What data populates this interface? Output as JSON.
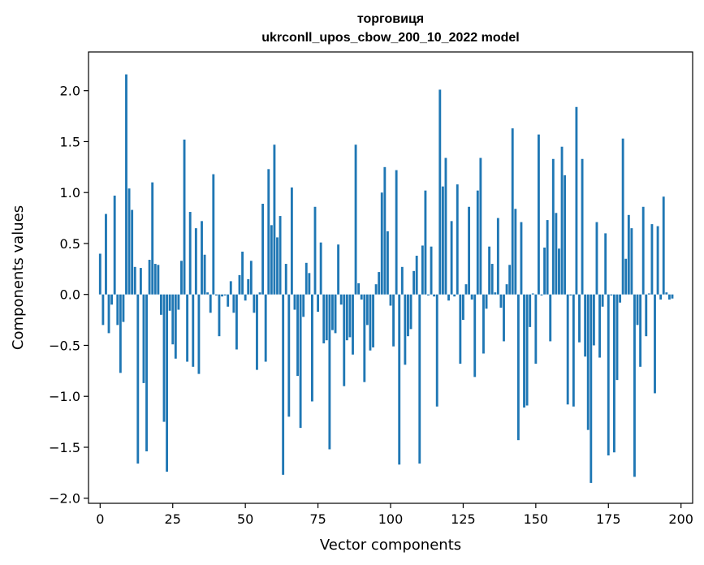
{
  "chart_data": {
    "type": "bar",
    "title": "торговиця",
    "subtitle": "ukrconll_upos_cbow_200_10_2022 model",
    "xlabel": "Vector components",
    "ylabel": "Components values",
    "xlim": [
      -4,
      204
    ],
    "ylim": [
      -2.05,
      2.38
    ],
    "xticks": [
      0,
      25,
      50,
      75,
      100,
      125,
      150,
      175,
      200
    ],
    "yticks": [
      -2.0,
      -1.5,
      -1.0,
      -0.5,
      0.0,
      0.5,
      1.0,
      1.5,
      2.0
    ],
    "ytick_labels": [
      "−2.0",
      "−1.5",
      "−1.0",
      "−0.5",
      "0.0",
      "0.5",
      "1.0",
      "1.5",
      "2.0"
    ],
    "bar_color": "#1f77b4",
    "values": [
      0.4,
      -0.3,
      0.79,
      -0.38,
      -0.1,
      0.97,
      -0.3,
      -0.77,
      -0.27,
      2.16,
      1.04,
      0.83,
      0.27,
      -1.66,
      0.26,
      -0.87,
      -1.54,
      0.34,
      1.1,
      0.3,
      0.29,
      -0.2,
      -1.25,
      -1.74,
      -0.16,
      -0.49,
      -0.63,
      -0.15,
      0.33,
      1.52,
      -0.66,
      0.81,
      -0.71,
      0.65,
      -0.78,
      0.72,
      0.39,
      0.02,
      -0.18,
      1.18,
      -0.01,
      -0.41,
      -0.02,
      -0.01,
      -0.12,
      0.13,
      -0.18,
      -0.54,
      0.19,
      0.42,
      -0.06,
      0.15,
      0.33,
      -0.18,
      -0.74,
      0.02,
      0.89,
      -0.66,
      1.23,
      0.68,
      1.47,
      0.56,
      0.77,
      -1.77,
      0.3,
      -1.2,
      1.05,
      -0.15,
      -0.8,
      -1.31,
      -0.22,
      0.31,
      0.21,
      -1.05,
      0.86,
      -0.17,
      0.51,
      -0.48,
      -0.45,
      -1.52,
      -0.35,
      -0.38,
      0.49,
      -0.1,
      -0.9,
      -0.45,
      -0.42,
      -0.59,
      1.47,
      0.11,
      -0.05,
      -0.86,
      -0.3,
      -0.55,
      -0.52,
      0.1,
      0.22,
      1.0,
      1.25,
      0.62,
      -0.11,
      -0.51,
      1.22,
      -1.67,
      0.27,
      -0.69,
      -0.41,
      -0.34,
      0.23,
      0.38,
      -1.66,
      0.48,
      1.02,
      -0.01,
      0.47,
      -0.02,
      -1.1,
      2.01,
      1.06,
      1.34,
      -0.06,
      0.72,
      -0.02,
      1.08,
      -0.68,
      -0.25,
      0.1,
      0.86,
      -0.05,
      -0.81,
      1.02,
      1.34,
      -0.58,
      -0.14,
      0.47,
      0.3,
      0.02,
      0.75,
      -0.13,
      -0.46,
      0.1,
      0.29,
      1.63,
      0.84,
      -1.43,
      0.71,
      -1.11,
      -1.09,
      -0.32,
      0.01,
      -0.68,
      1.57,
      -0.01,
      0.46,
      0.73,
      -0.46,
      1.33,
      0.8,
      0.45,
      1.45,
      1.17,
      -1.08,
      -0.01,
      -1.1,
      1.84,
      -0.47,
      1.33,
      -0.61,
      -1.33,
      -1.85,
      -0.5,
      0.71,
      -0.62,
      -0.12,
      0.6,
      -1.58,
      -0.01,
      -1.55,
      -0.84,
      -0.08,
      1.53,
      0.35,
      0.78,
      0.65,
      -1.79,
      -0.3,
      -0.71,
      0.86,
      -0.41,
      0.01,
      0.69,
      -0.97,
      0.67,
      -0.05,
      0.96,
      0.02,
      -0.05,
      -0.04
    ]
  }
}
